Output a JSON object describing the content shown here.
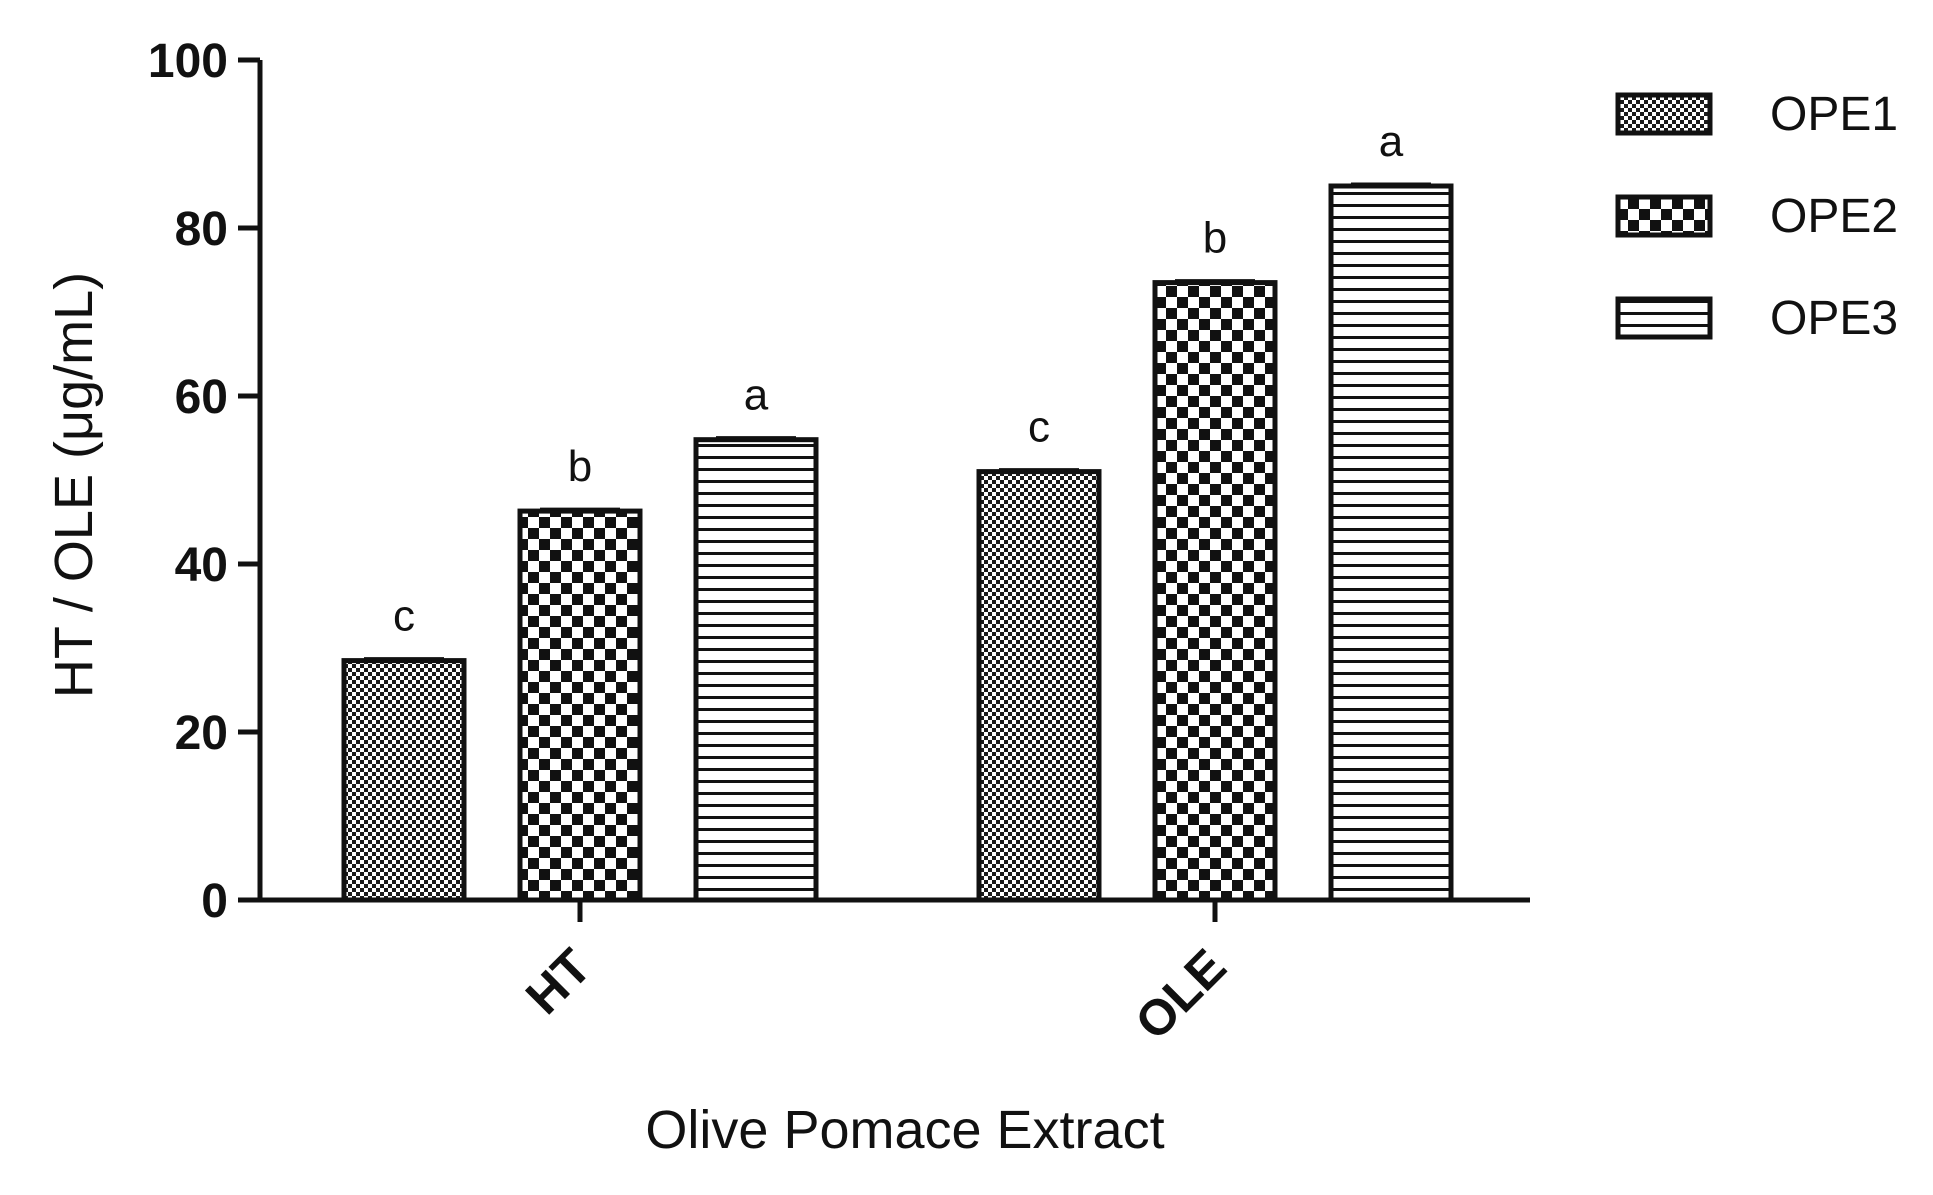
{
  "chart_data": {
    "type": "bar",
    "title": "",
    "xlabel": "Olive Pomace Extract",
    "ylabel": "HT / OLE (μg/mL)",
    "ylim": [
      0,
      100
    ],
    "yticks": [
      "0",
      "20",
      "40",
      "60",
      "80",
      "100"
    ],
    "categories": [
      "HT",
      "OLE"
    ],
    "series": [
      {
        "name": "OPE1",
        "pattern": "fine-dots",
        "values": [
          28.5,
          51.0
        ],
        "significance": [
          "c",
          "c"
        ]
      },
      {
        "name": "OPE2",
        "pattern": "checkerboard",
        "values": [
          46.3,
          73.5
        ],
        "significance": [
          "b",
          "b"
        ]
      },
      {
        "name": "OPE3",
        "pattern": "horizontal-lines",
        "values": [
          54.8,
          85.0
        ],
        "significance": [
          "a",
          "a"
        ]
      }
    ],
    "legend": {
      "position": "right"
    },
    "grid": false,
    "colors": {
      "ink": "#111111",
      "background": "#ffffff"
    }
  }
}
